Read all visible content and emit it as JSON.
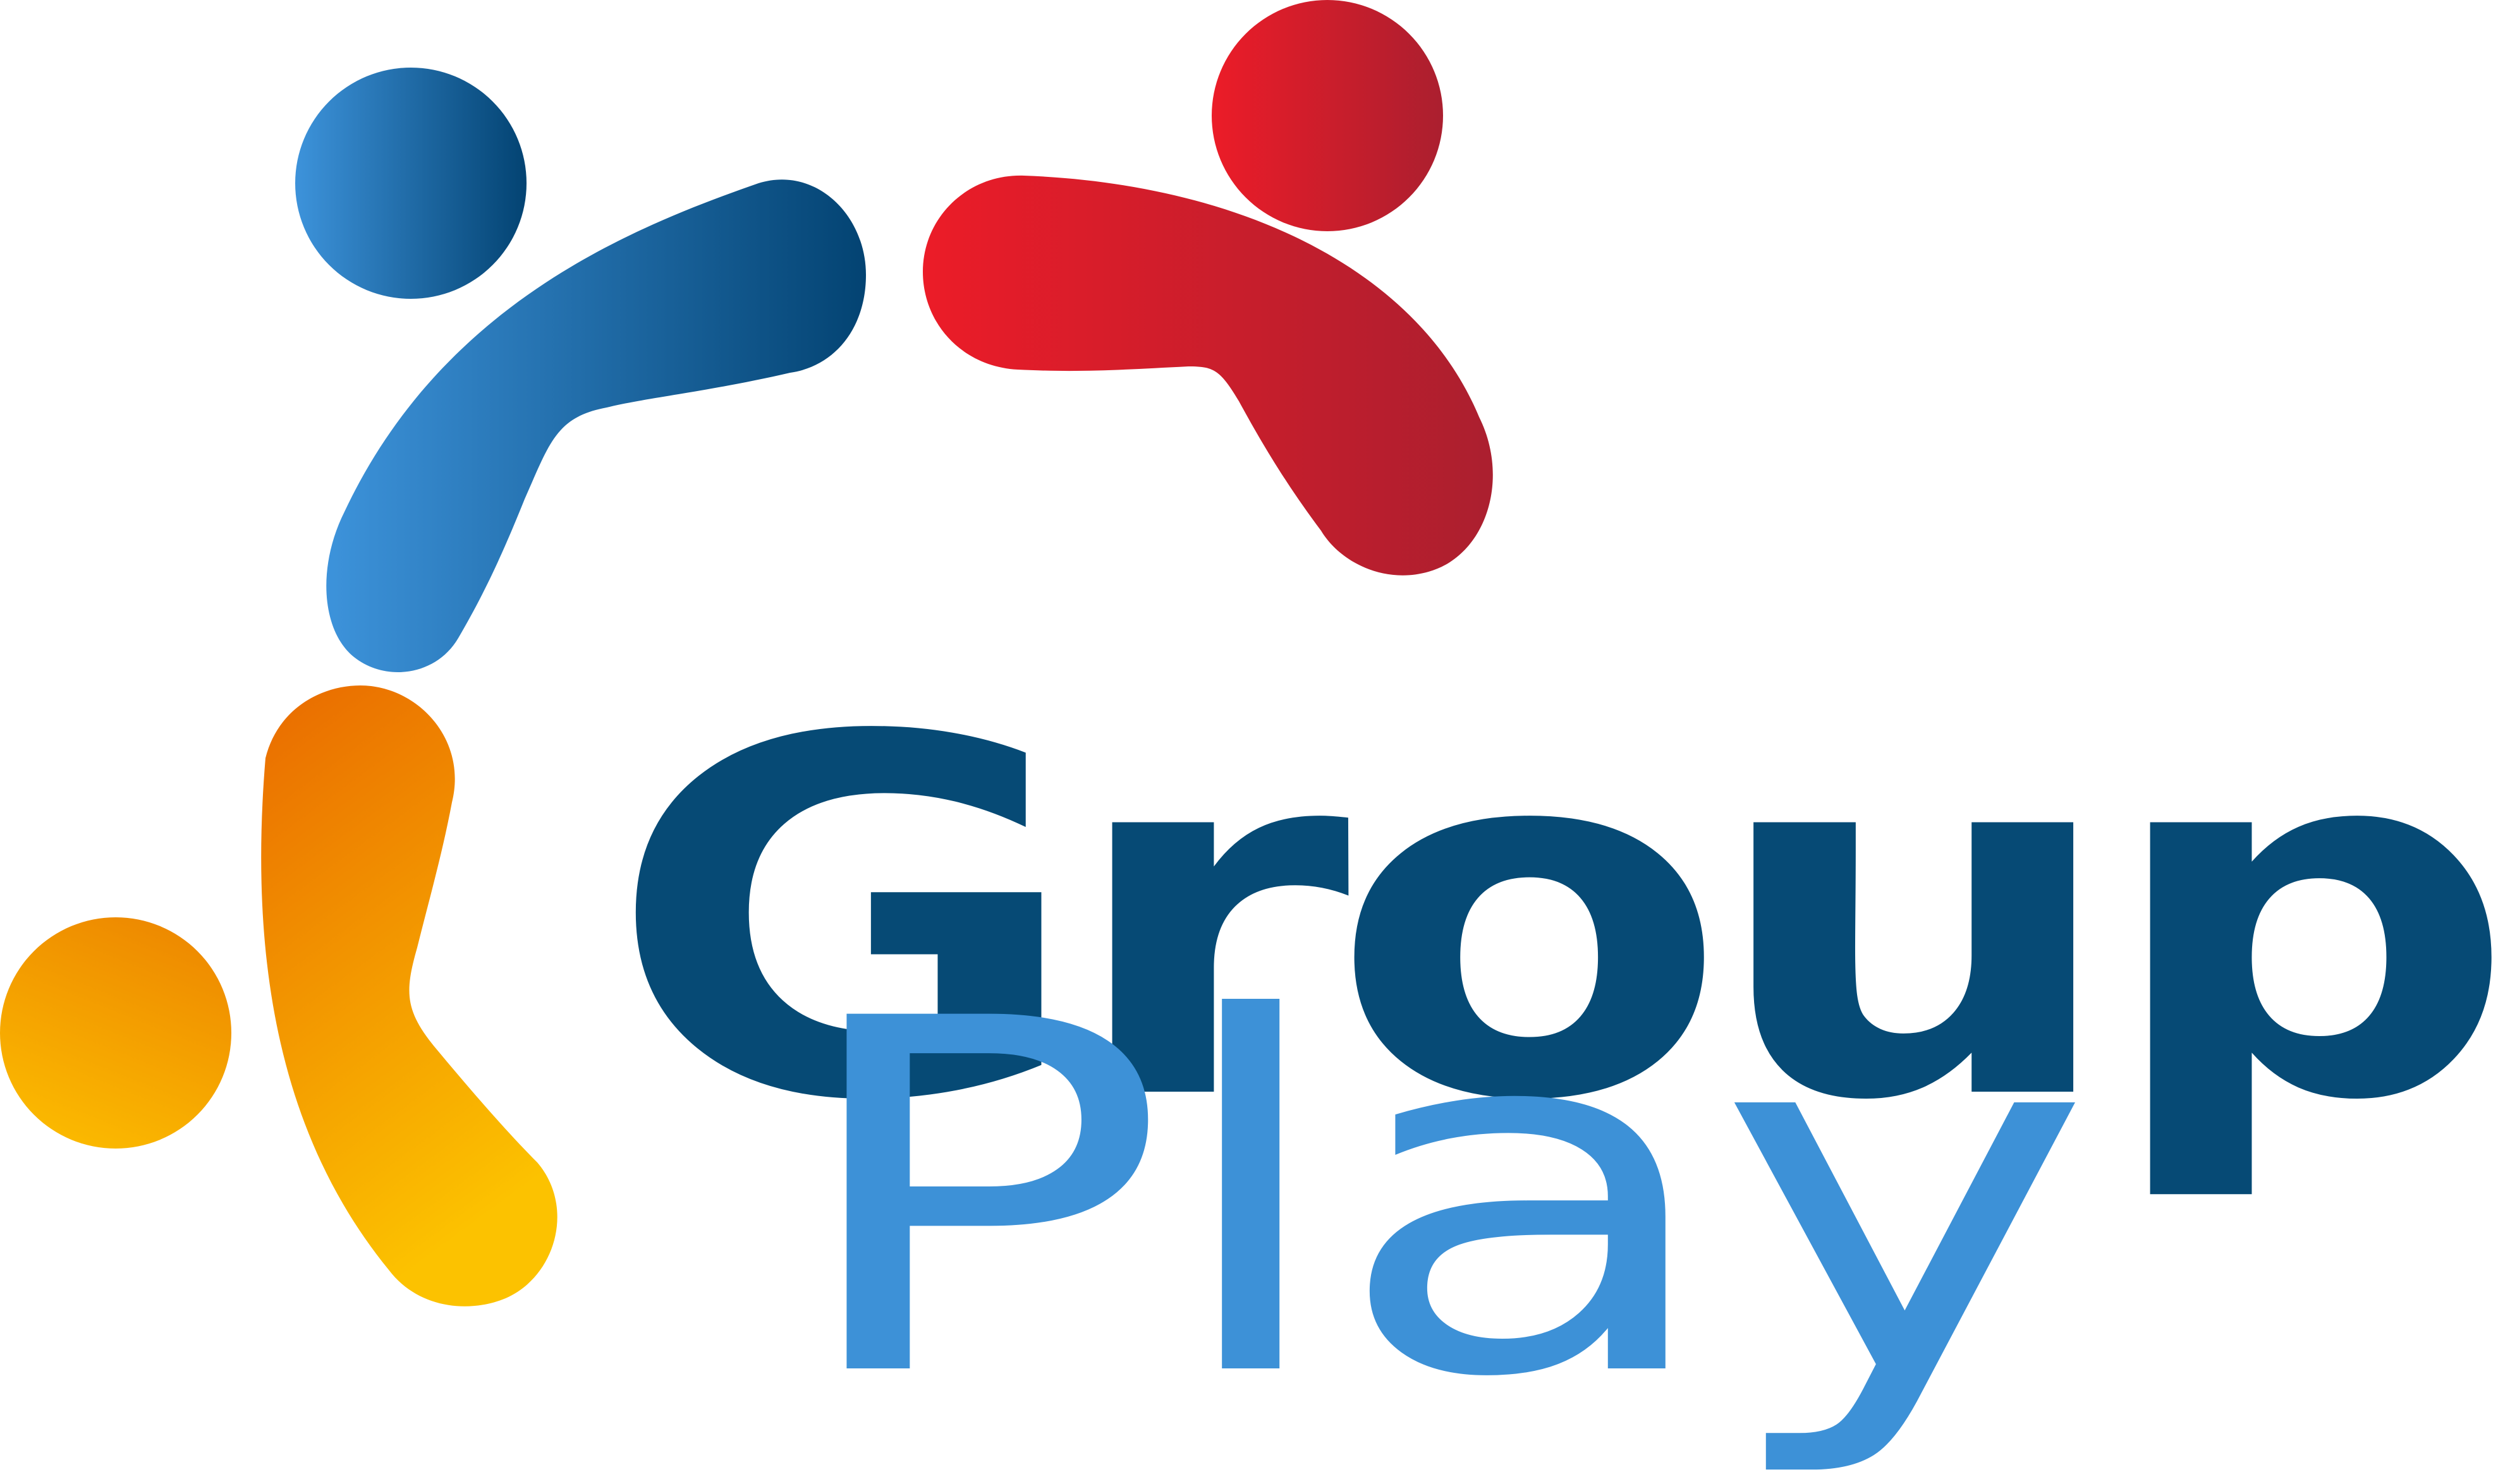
{
  "logo": {
    "word_primary": "Group",
    "word_secondary": "Play",
    "colors": {
      "primary_text": "#064a75",
      "secondary_text": "#3d91d7",
      "blue_light": "#3d93db",
      "blue_dark": "#034372",
      "red_light": "#ec1c28",
      "red_dark": "#ab1f2f",
      "orange": "#e96a00",
      "yellow": "#fcc200"
    },
    "figures": [
      {
        "name": "blue-figure",
        "color": "blue"
      },
      {
        "name": "red-figure",
        "color": "red"
      },
      {
        "name": "orange-figure",
        "color": "orange"
      }
    ]
  }
}
